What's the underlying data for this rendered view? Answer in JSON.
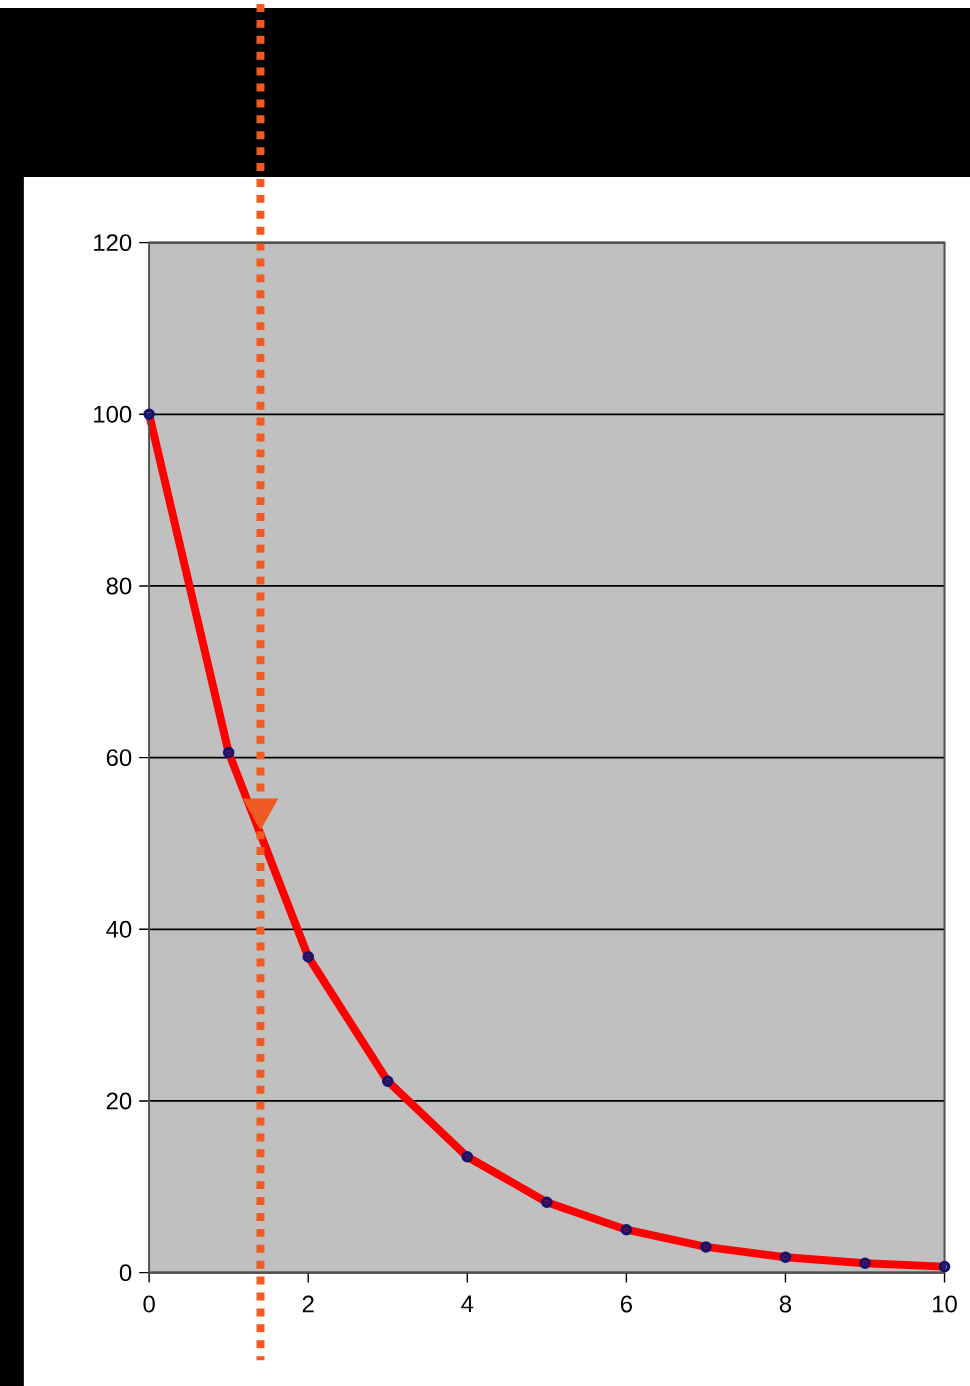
{
  "chart_data": {
    "type": "line",
    "x": [
      0,
      1,
      2,
      3,
      4,
      5,
      6,
      7,
      8,
      9,
      10
    ],
    "series": [
      {
        "color": "#ff0000",
        "values": [
          100,
          60.6,
          36.8,
          22.3,
          13.5,
          8.2,
          5.0,
          3.0,
          1.8,
          1.1,
          0.7
        ]
      }
    ],
    "marker": "circle",
    "xlim": [
      0,
      10
    ],
    "xticks": [
      0,
      2,
      4,
      6,
      8,
      10
    ],
    "ylim": [
      0,
      120
    ],
    "yticks": [
      0,
      20,
      40,
      60,
      80,
      100,
      120
    ],
    "grid": "y",
    "ref_lines": [
      {
        "axis": "x",
        "value": 1.4,
        "color": "#f05a23",
        "line_style": "dotted"
      }
    ]
  }
}
